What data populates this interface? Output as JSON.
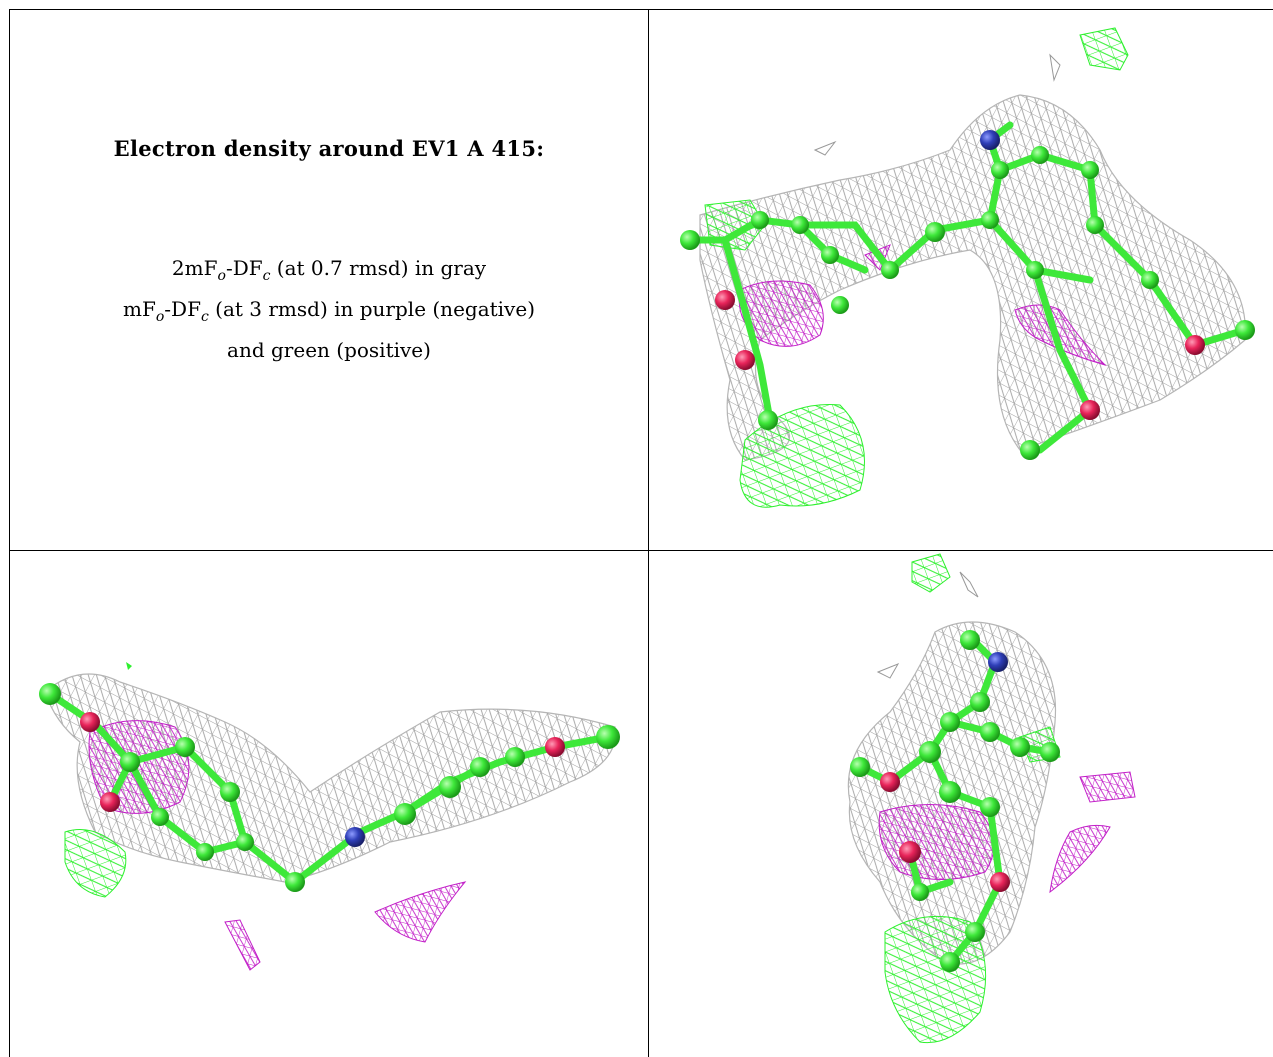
{
  "caption": {
    "title": "Electron density around EV1 A 415:",
    "line1_prefix": "2mF",
    "line1_sub1": "o",
    "line1_mid": "-DF",
    "line1_sub2": "c",
    "line1_suffix": " (at 0.7 rmsd) in gray",
    "line2_prefix": "mF",
    "line2_sub1": "o",
    "line2_mid": "-DF",
    "line2_sub2": "c",
    "line2_suffix": " (at 3 rmsd) in purple (negative)",
    "line3": "and green (positive)"
  },
  "colors": {
    "carbon": "#3ee83a",
    "nitrogen": "#2f3fb8",
    "oxygen": "#e8245a",
    "mesh_gray": "#9a9a9a",
    "mesh_purple": "#c21ec8",
    "mesh_green": "#2ef02e"
  },
  "views": [
    {
      "name": "view-top-right"
    },
    {
      "name": "view-bottom-left"
    },
    {
      "name": "view-bottom-right"
    }
  ]
}
